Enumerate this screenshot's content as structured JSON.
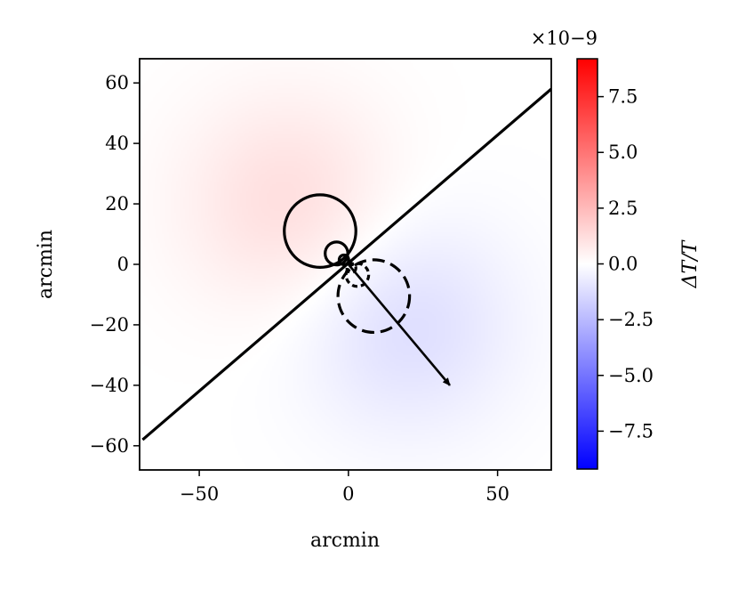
{
  "chart_data": {
    "type": "heatmap",
    "xlabel": "arcmin",
    "ylabel": "arcmin",
    "xlim": [
      -70,
      68
    ],
    "ylim": [
      -68,
      68
    ],
    "x_ticks": [
      -50,
      0,
      50
    ],
    "x_tick_labels": [
      "−50",
      "0",
      "50"
    ],
    "y_ticks": [
      -60,
      -40,
      -20,
      0,
      20,
      40,
      60
    ],
    "y_tick_labels": [
      "−60",
      "−40",
      "−20",
      "0",
      "20",
      "40",
      "60"
    ],
    "colorbar": {
      "label": "ΔT/T",
      "multiplier": "×10−9",
      "range": [
        -9.2,
        9.2
      ],
      "ticks": [
        -7.5,
        -5.0,
        -2.5,
        0.0,
        2.5,
        5.0,
        7.5
      ],
      "tick_labels": [
        "−7.5",
        "−5.0",
        "−2.5",
        "0.0",
        "2.5",
        "5.0",
        "7.5"
      ],
      "colormap": "bwr",
      "low_color": "#0000ff",
      "mid_color": "#ffffff",
      "high_color": "#ff0000"
    },
    "field": {
      "description_type": "dipole",
      "positive_center": [
        -20,
        20
      ],
      "negative_center": [
        20,
        -20
      ],
      "peak_abs_value": 1.2
    },
    "diagonal_line": {
      "x": [
        -69,
        68
      ],
      "y": [
        -58,
        58
      ]
    },
    "arrow": {
      "from": [
        0,
        0
      ],
      "to": [
        34,
        -40
      ]
    },
    "solid_circles": [
      {
        "cx": -9.5,
        "cy": 11,
        "r": 12
      },
      {
        "cx": -4,
        "cy": 3.6,
        "r": 3.8
      },
      {
        "cx": -1.5,
        "cy": 1.5,
        "r": 1.6
      }
    ],
    "dashed_circles": [
      {
        "cx": 8.5,
        "cy": -10.5,
        "r": 12
      },
      {
        "cx": 3,
        "cy": -3.5,
        "r": 3.8
      },
      {
        "cx": 1,
        "cy": -1.2,
        "r": 1.5
      }
    ],
    "grid": false
  }
}
